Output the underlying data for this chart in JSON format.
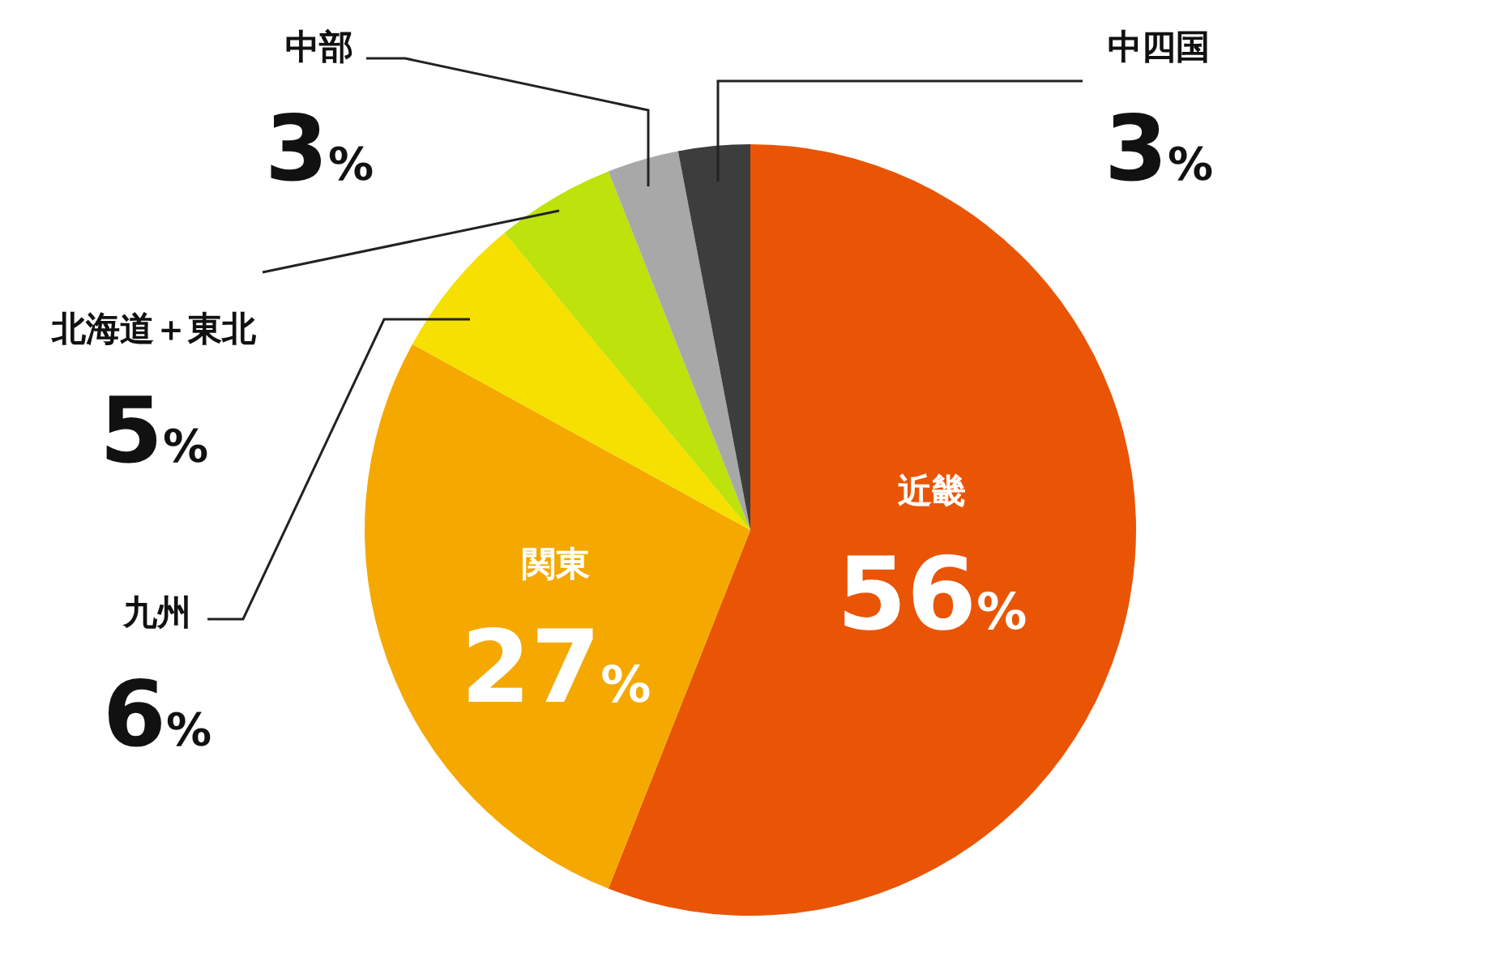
{
  "chart_data": {
    "type": "pie",
    "categories": [
      "近畿",
      "関東",
      "九州",
      "北海道＋東北",
      "中部",
      "中四国"
    ],
    "values": [
      56,
      27,
      6,
      5,
      3,
      3
    ],
    "colors": [
      "#e95504",
      "#f5a800",
      "#f5e000",
      "#bde20c",
      "#a8a8a8",
      "#3d3d3d"
    ],
    "value_labels": [
      "56%",
      "27%",
      "6%",
      "5%",
      "3%",
      "3%"
    ]
  }
}
